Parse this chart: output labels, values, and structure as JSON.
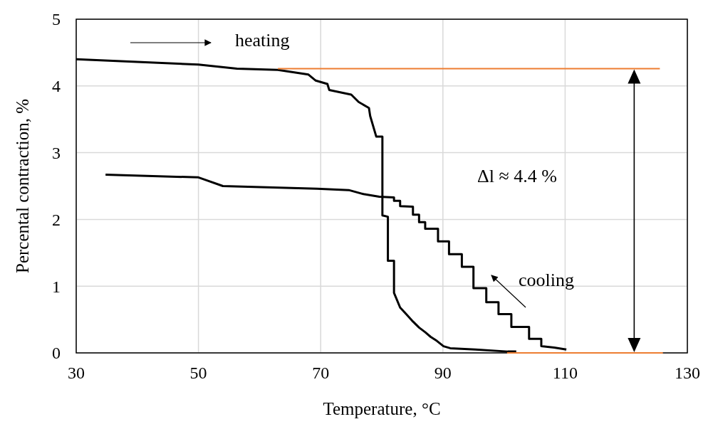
{
  "chart_data": {
    "type": "line",
    "xlabel": "Temperature, °C",
    "ylabel": "Percental contraction, %",
    "xlim": [
      30,
      130
    ],
    "xticks": [
      30,
      50,
      70,
      90,
      110,
      130
    ],
    "ylim": [
      0,
      5
    ],
    "yticks": [
      0,
      1,
      2,
      3,
      4,
      5
    ],
    "grid": true,
    "line_style": "solid",
    "annotations": [
      "heating",
      "cooling",
      "Δl ≈ 4.4 %"
    ],
    "series": [
      {
        "color": "#000000",
        "x": [
          30,
          40,
          50,
          56.3,
          63,
          68,
          69.2,
          71.1,
          71.4,
          75,
          76.2,
          77.9,
          78.1,
          79.1,
          80.1,
          80.1,
          81,
          81,
          82,
          82,
          83,
          84,
          85.1,
          86.1,
          87.1,
          88,
          89,
          90.1,
          91.2,
          95.3,
          100.6,
          102
        ],
        "values": [
          4.4,
          4.36,
          4.32,
          4.26,
          4.24,
          4.17,
          4.08,
          4.03,
          3.94,
          3.87,
          3.76,
          3.67,
          3.55,
          3.24,
          3.24,
          2.06,
          2.04,
          1.38,
          1.38,
          0.9,
          0.68,
          0.58,
          0.47,
          0.38,
          0.31,
          0.24,
          0.18,
          0.1,
          0.07,
          0.05,
          0.02,
          0.02
        ]
      },
      {
        "color": "#000000",
        "x": [
          34.8,
          50,
          54,
          69.4,
          74.6,
          77,
          79.6,
          82,
          82,
          83,
          83,
          85.1,
          85.1,
          86.1,
          86.1,
          87.1,
          87.1,
          89.2,
          89.2,
          91,
          91,
          93.1,
          93.1,
          95,
          95,
          97.1,
          97.1,
          99.1,
          99.1,
          101.2,
          101.2,
          104.1,
          104.1,
          106.1,
          106.1,
          108.2,
          110.2
        ],
        "values": [
          2.67,
          2.63,
          2.5,
          2.46,
          2.44,
          2.38,
          2.34,
          2.33,
          2.28,
          2.28,
          2.2,
          2.19,
          2.07,
          2.07,
          1.96,
          1.96,
          1.86,
          1.86,
          1.67,
          1.67,
          1.48,
          1.48,
          1.29,
          1.29,
          0.97,
          0.97,
          0.76,
          0.76,
          0.58,
          0.58,
          0.39,
          0.39,
          0.21,
          0.21,
          0.1,
          0.08,
          0.05
        ]
      },
      {
        "color": "#ed7d31",
        "x": [
          63,
          125.5
        ],
        "values": [
          4.26,
          4.26
        ]
      },
      {
        "color": "#ed7d31",
        "x": [
          100.5,
          126
        ],
        "values": [
          0,
          0
        ]
      }
    ]
  }
}
